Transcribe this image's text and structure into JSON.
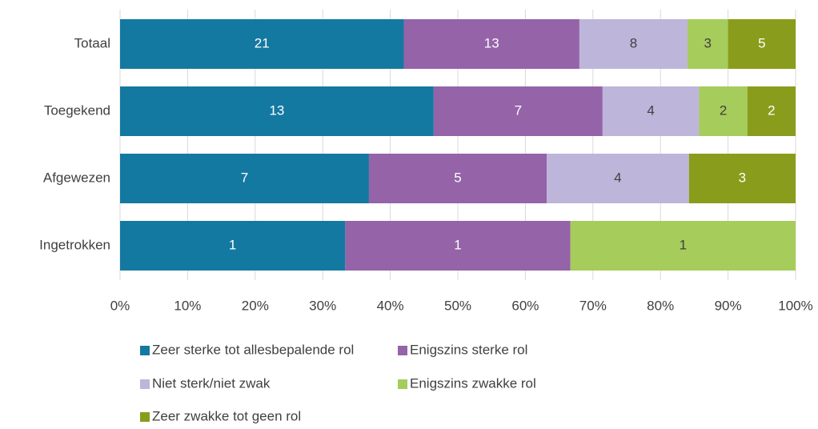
{
  "chart_data": {
    "type": "bar",
    "orientation": "horizontal",
    "stacked": "percent",
    "categories": [
      "Totaal",
      "Toegekend",
      "Afgewezen",
      "Ingetrokken"
    ],
    "series": [
      {
        "name": "Zeer sterke tot allesbepalende rol",
        "color": "#1479a1",
        "values": [
          21,
          13,
          7,
          1
        ]
      },
      {
        "name": "Enigszins sterke rol",
        "color": "#9563a8",
        "values": [
          13,
          7,
          5,
          1
        ]
      },
      {
        "name": "Niet sterk/niet zwak",
        "color": "#bdb5da",
        "values": [
          8,
          4,
          4,
          null
        ]
      },
      {
        "name": "Enigszins zwakke rol",
        "color": "#a6cc5b",
        "values": [
          3,
          2,
          null,
          1
        ]
      },
      {
        "name": "Zeer zwakke tot geen rol",
        "color": "#8a9c1b",
        "values": [
          5,
          2,
          3,
          null
        ]
      }
    ],
    "xlim": [
      0,
      100
    ],
    "xticks": [
      {
        "value": 0,
        "label": "0%"
      },
      {
        "value": 10,
        "label": "10%"
      },
      {
        "value": 20,
        "label": "20%"
      },
      {
        "value": 30,
        "label": "30%"
      },
      {
        "value": 40,
        "label": "40%"
      },
      {
        "value": 50,
        "label": "50%"
      },
      {
        "value": 60,
        "label": "60%"
      },
      {
        "value": 70,
        "label": "70%"
      },
      {
        "value": 80,
        "label": "80%"
      },
      {
        "value": 90,
        "label": "90%"
      },
      {
        "value": 100,
        "label": "100%"
      }
    ],
    "grid": true,
    "legend": "bottom"
  }
}
